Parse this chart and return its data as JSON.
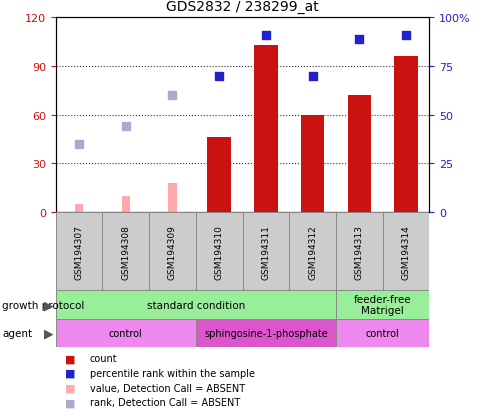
{
  "title": "GDS2832 / 238299_at",
  "samples": [
    "GSM194307",
    "GSM194308",
    "GSM194309",
    "GSM194310",
    "GSM194311",
    "GSM194312",
    "GSM194313",
    "GSM194314"
  ],
  "count_values": [
    null,
    null,
    null,
    46,
    103,
    60,
    72,
    96
  ],
  "count_absent": [
    5,
    10,
    18,
    null,
    null,
    null,
    null,
    null
  ],
  "percentile_rank": [
    null,
    null,
    null,
    70,
    91,
    70,
    89,
    91
  ],
  "rank_absent": [
    35,
    44,
    60,
    null,
    null,
    null,
    null,
    null
  ],
  "ylim_left": [
    0,
    120
  ],
  "ylim_right": [
    0,
    100
  ],
  "yticks_left": [
    0,
    30,
    60,
    90,
    120
  ],
  "yticks_right": [
    0,
    25,
    50,
    75,
    100
  ],
  "yticklabels_right": [
    "0",
    "25",
    "50",
    "75",
    "100%"
  ],
  "bar_color": "#cc1111",
  "bar_absent_color": "#ffaaaa",
  "scatter_color": "#2222cc",
  "scatter_absent_color": "#aaaacc",
  "plot_bg": "#ffffff",
  "left_tick_color": "#cc1111",
  "right_tick_color": "#2222cc",
  "gp_groups": [
    {
      "label": "standard condition",
      "start": 0,
      "end": 6,
      "color": "#99ee99"
    },
    {
      "label": "feeder-free\nMatrigel",
      "start": 6,
      "end": 8,
      "color": "#99ee99"
    }
  ],
  "agent_groups": [
    {
      "label": "control",
      "start": 0,
      "end": 3,
      "color": "#ee88ee"
    },
    {
      "label": "sphingosine-1-phosphate",
      "start": 3,
      "end": 6,
      "color": "#dd55cc"
    },
    {
      "label": "control",
      "start": 6,
      "end": 8,
      "color": "#ee88ee"
    }
  ],
  "legend_items": [
    {
      "label": "count",
      "color": "#cc1111"
    },
    {
      "label": "percentile rank within the sample",
      "color": "#2222cc"
    },
    {
      "label": "value, Detection Call = ABSENT",
      "color": "#ffaaaa"
    },
    {
      "label": "rank, Detection Call = ABSENT",
      "color": "#aaaacc"
    }
  ]
}
